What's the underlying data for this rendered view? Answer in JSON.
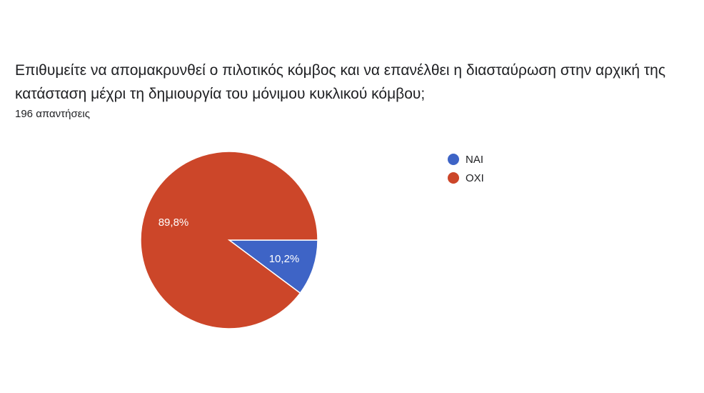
{
  "question": "Επιθυμείτε να απομακρυνθεί ο πιλοτικός κόμβος και να επανέλθει η διασταύρωση στην αρχική της κατάσταση μέχρι τη δημιουργία του μόνιμου κυκλικού κόμβου;",
  "responses_count": "196 απαντήσεις",
  "chart_data": {
    "type": "pie",
    "title": "Επιθυμείτε να απομακρυνθεί ο πιλοτικός κόμβος και να επανέλθει η διασταύρωση στην αρχική της κατάσταση μέχρι τη δημιουργία του μόνιμου κυκλικού κόμβου;",
    "categories": [
      "ΝΑΙ",
      "ΟΧΙ"
    ],
    "values": [
      10.2,
      89.8
    ],
    "value_labels": [
      "10,2%",
      "89,8%"
    ],
    "colors": [
      "#3e64c6",
      "#cc4629"
    ],
    "legend": "right",
    "start": "3 o'clock, clockwise"
  }
}
